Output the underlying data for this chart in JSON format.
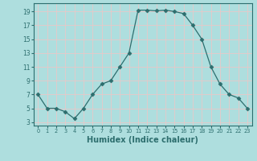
{
  "x": [
    0,
    1,
    2,
    3,
    4,
    5,
    6,
    7,
    8,
    9,
    10,
    11,
    12,
    13,
    14,
    15,
    16,
    17,
    18,
    19,
    20,
    21,
    22,
    23
  ],
  "y": [
    7,
    5,
    5,
    4.5,
    3.5,
    5,
    7,
    8.5,
    9,
    11,
    13,
    19.2,
    19.2,
    19.1,
    19.2,
    19,
    18.7,
    17,
    15,
    11,
    8.5,
    7,
    6.5,
    5
  ],
  "line_color": "#2d6e6e",
  "marker": "D",
  "marker_size": 2.5,
  "bg_color": "#aedede",
  "grid_color": "#d0eeee",
  "xlabel": "Humidex (Indice chaleur)",
  "xlabel_fontsize": 7,
  "ytick_labels": [
    "3",
    "5",
    "7",
    "9",
    "11",
    "13",
    "15",
    "17",
    "19"
  ],
  "ytick_vals": [
    3,
    5,
    7,
    9,
    11,
    13,
    15,
    17,
    19
  ],
  "xtick_vals": [
    0,
    1,
    2,
    3,
    4,
    5,
    6,
    7,
    8,
    9,
    10,
    11,
    12,
    13,
    14,
    15,
    16,
    17,
    18,
    19,
    20,
    21,
    22,
    23
  ],
  "xlim": [
    -0.5,
    23.5
  ],
  "ylim": [
    2.5,
    20.2
  ]
}
